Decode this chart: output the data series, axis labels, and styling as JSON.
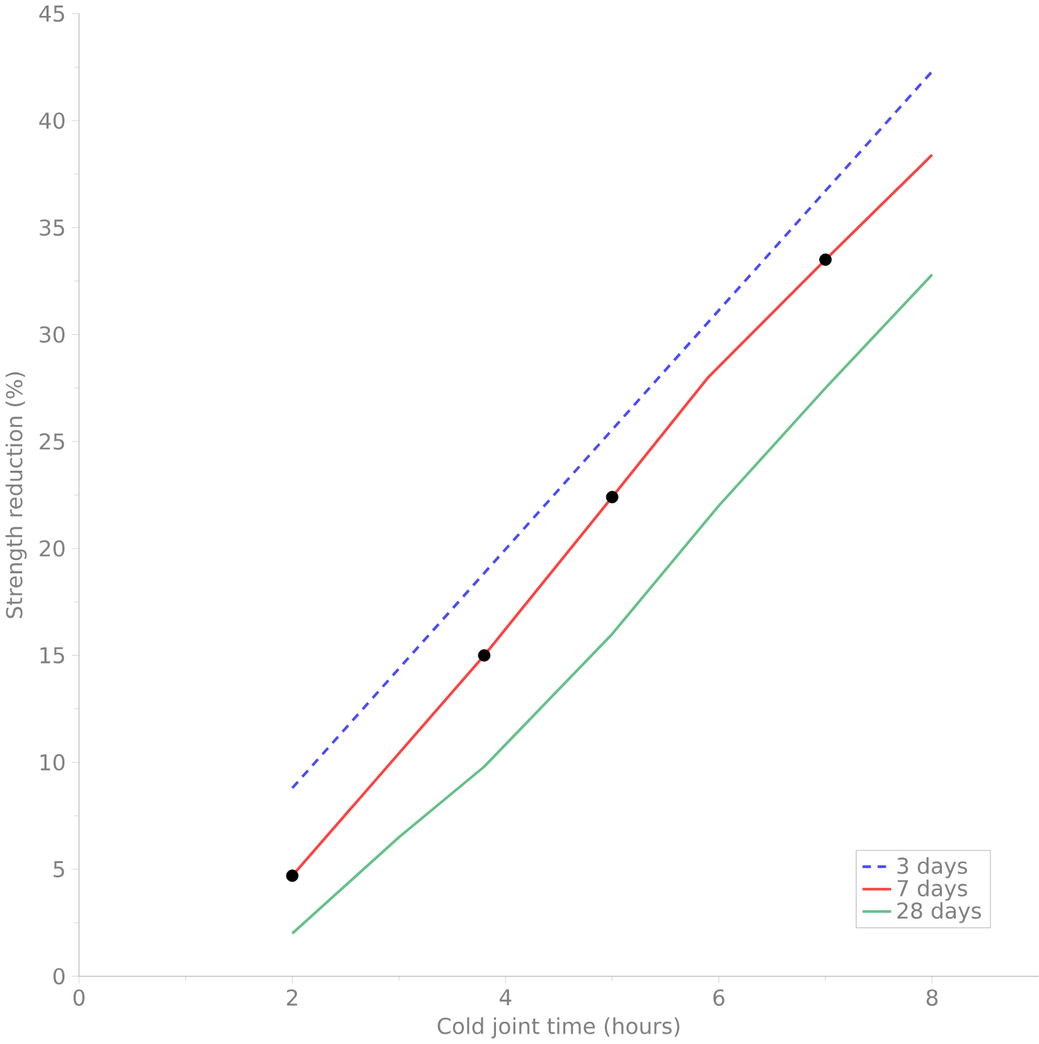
{
  "chart_data": {
    "type": "line",
    "xlabel": "Cold joint time (hours)",
    "ylabel": "Strength reduction (%)",
    "xlim": [
      0,
      9
    ],
    "xticks": [
      0,
      2,
      4,
      6,
      8
    ],
    "ylim": [
      0,
      45
    ],
    "yticks": [
      0,
      5,
      10,
      15,
      20,
      25,
      30,
      35,
      40,
      45
    ],
    "grid": false,
    "legend": "bottom right",
    "series": [
      {
        "name": "3 days",
        "color": "#4a4aff",
        "line_style": "dashed",
        "marker": "none",
        "x": [
          2,
          8
        ],
        "values": [
          8.8,
          42.3
        ]
      },
      {
        "name": "7 days",
        "color": "#ff4040",
        "line_style": "solid",
        "marker": "none",
        "x": [
          2,
          3.8,
          5,
          5.9,
          7,
          8
        ],
        "values": [
          4.7,
          15,
          22.4,
          28,
          33.5,
          38.4
        ]
      },
      {
        "type": "scatter",
        "color": "#000000",
        "marker": "circle",
        "x": [
          2,
          3.8,
          5,
          7
        ],
        "values": [
          4.7,
          15,
          22.4,
          33.5
        ]
      },
      {
        "name": "28 days",
        "color": "#66c08a",
        "line_style": "solid",
        "marker": "none",
        "x": [
          2,
          3,
          3.8,
          5,
          6,
          7,
          8
        ],
        "values": [
          2,
          6.5,
          9.8,
          16,
          22,
          27.5,
          32.8
        ]
      }
    ]
  }
}
